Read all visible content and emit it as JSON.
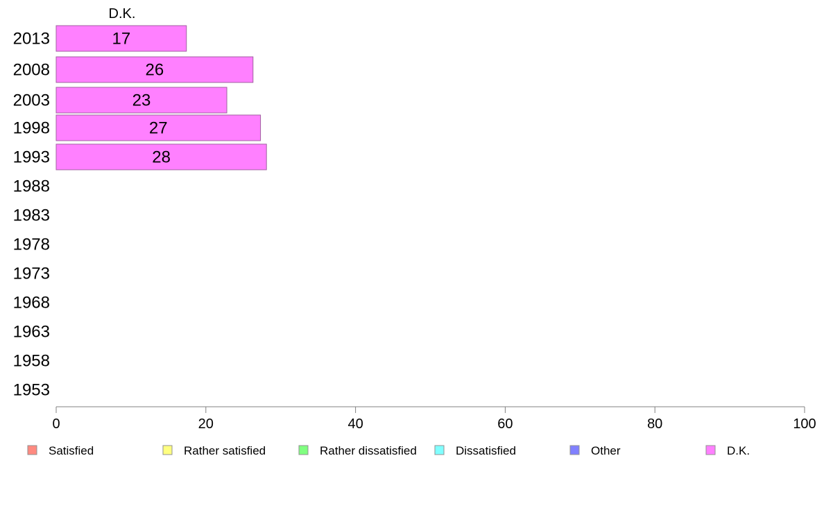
{
  "chart_data": {
    "type": "bar",
    "orientation": "horizontal",
    "stacked": true,
    "categories": [
      "2013",
      "2008",
      "2003",
      "1998",
      "1993",
      "1988",
      "1983",
      "1978",
      "1973",
      "1968",
      "1963",
      "1958",
      "1953"
    ],
    "series": [
      {
        "name": "Satisfied",
        "color": "#ff8a80",
        "values": [
          null,
          null,
          null,
          null,
          null,
          null,
          null,
          null,
          null,
          null,
          null,
          null,
          null
        ]
      },
      {
        "name": "Rather satisfied",
        "color": "#ffff80",
        "values": [
          null,
          null,
          null,
          null,
          null,
          null,
          null,
          null,
          null,
          null,
          null,
          null,
          null
        ]
      },
      {
        "name": "Rather dissatisfied",
        "color": "#80ff80",
        "values": [
          null,
          null,
          null,
          null,
          null,
          null,
          null,
          null,
          null,
          null,
          null,
          null,
          null
        ]
      },
      {
        "name": "Dissatisfied",
        "color": "#80ffff",
        "values": [
          null,
          null,
          null,
          null,
          null,
          null,
          null,
          null,
          null,
          null,
          null,
          null,
          null
        ]
      },
      {
        "name": "Other",
        "color": "#8080ff",
        "values": [
          null,
          null,
          null,
          null,
          null,
          null,
          null,
          null,
          null,
          null,
          null,
          null,
          null
        ]
      },
      {
        "name": "D.K.",
        "color": "#ff80ff",
        "values": [
          17.4,
          26.3,
          22.8,
          27.3,
          28.1,
          null,
          null,
          null,
          null,
          null,
          null,
          null,
          null
        ]
      }
    ],
    "data_labels": [
      "17",
      "26",
      "23",
      "27",
      "28",
      "",
      "",
      "",
      "",
      "",
      "",
      "",
      ""
    ],
    "column_header": "D.K.",
    "xlim": [
      0,
      100
    ],
    "xticks": [
      0,
      20,
      40,
      60,
      80,
      100
    ],
    "grid": false,
    "legend_position": "bottom"
  }
}
